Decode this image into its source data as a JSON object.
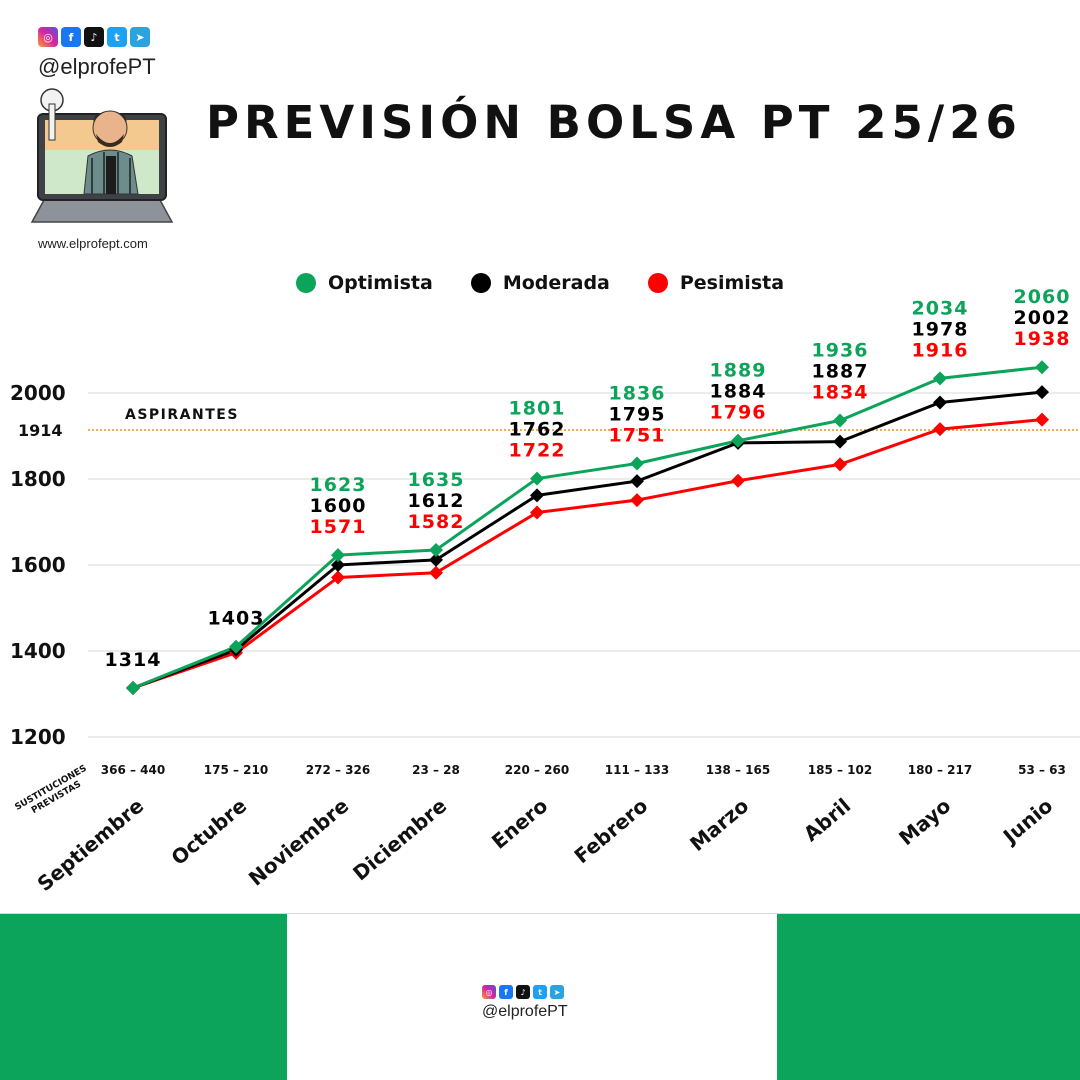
{
  "brand": {
    "handle": "@elprofePT",
    "website": "www.elprofept.com",
    "social_icons": [
      "instagram-icon",
      "facebook-icon",
      "tiktok-icon",
      "twitter-icon",
      "telegram-icon"
    ]
  },
  "chart_data": {
    "type": "line",
    "title": "PREVISIÓN BOLSA PT 25/26",
    "categories": [
      "Septiembre",
      "Octubre",
      "Noviembre",
      "Diciembre",
      "Enero",
      "Febrero",
      "Marzo",
      "Abril",
      "Mayo",
      "Junio"
    ],
    "series": [
      {
        "name": "Optimista",
        "color": "#0ca45a",
        "values": [
          1314,
          1410,
          1623,
          1635,
          1801,
          1836,
          1889,
          1936,
          2034,
          2060
        ]
      },
      {
        "name": "Moderada",
        "color": "#000000",
        "values": [
          1314,
          1403,
          1600,
          1612,
          1762,
          1795,
          1884,
          1887,
          1978,
          2002
        ]
      },
      {
        "name": "Pesimista",
        "color": "#ff0000",
        "values": [
          1314,
          1396,
          1571,
          1582,
          1722,
          1751,
          1796,
          1834,
          1916,
          1938
        ]
      }
    ],
    "point_labels": [
      {
        "category": "Septiembre",
        "black": "1314"
      },
      {
        "category": "Octubre",
        "black": "1403"
      },
      {
        "category": "Noviembre",
        "green": "1623",
        "black": "1600",
        "red": "1571"
      },
      {
        "category": "Diciembre",
        "green": "1635",
        "black": "1612",
        "red": "1582"
      },
      {
        "category": "Enero",
        "green": "1801",
        "black": "1762",
        "red": "1722"
      },
      {
        "category": "Febrero",
        "green": "1836",
        "black": "1795",
        "red": "1751"
      },
      {
        "category": "Marzo",
        "green": "1889",
        "black": "1884",
        "red": "1796"
      },
      {
        "category": "Abril",
        "green": "1936",
        "black": "1887",
        "red": "1834"
      },
      {
        "category": "Mayo",
        "green": "2034",
        "black": "1978",
        "red": "1916"
      },
      {
        "category": "Junio",
        "green": "2060",
        "black": "2002",
        "red": "1938"
      }
    ],
    "yticks": [
      1200,
      1400,
      1600,
      1800,
      2000
    ],
    "ylim": [
      1200,
      2000
    ],
    "reference_line": {
      "value": 1914,
      "label": "ASPIRANTES",
      "tick_label": "1914",
      "color": "#e8901a"
    },
    "sustituciones": {
      "label_line1": "SUSTITUCIONES",
      "label_line2": "PREVISTAS",
      "values": [
        "366 – 440",
        "175 – 210",
        "272 – 326",
        "23 – 28",
        "220 – 260",
        "111 – 133",
        "138 – 165",
        "185 – 102",
        "180 – 217",
        "53 – 63"
      ]
    },
    "legend_position": "top-center",
    "grid": true
  },
  "colors": {
    "green": "#0ca45a",
    "black": "#000000",
    "red": "#ff0000",
    "grid": "#d8d8d8",
    "footer_green": "#0ca45a"
  }
}
